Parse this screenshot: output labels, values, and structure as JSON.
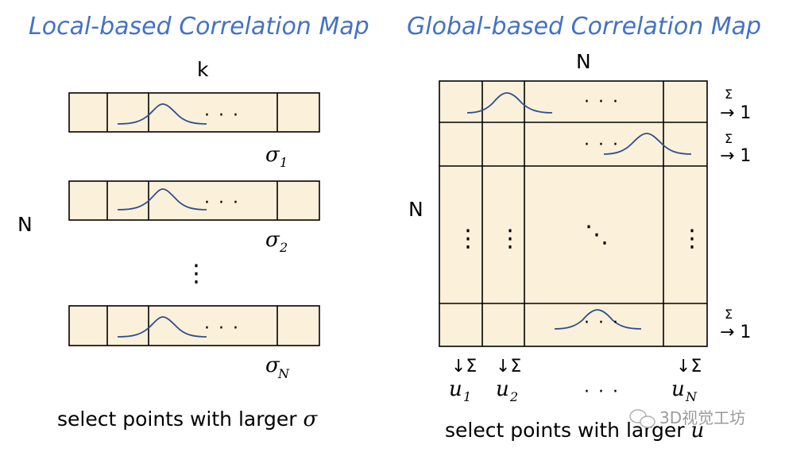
{
  "left_panel": {
    "title": "Local-based Correlation Map",
    "k_label": "k",
    "n_label": "N",
    "row_dots": "· · ·",
    "vertical_dots": "⋮",
    "sigma_symbol": "σ",
    "sigma_subscripts": [
      "1",
      "2",
      "N"
    ],
    "caption": "select points with larger ",
    "caption_symbol": "σ"
  },
  "right_panel": {
    "title": "Global-based Correlation Map",
    "n_top_label": "N",
    "n_left_label": "N",
    "row_sum_prefix": "Σ",
    "row_sum_arrow": "→ 1",
    "col_sum_label": "↓Σ",
    "u_symbol": "u",
    "u_subscripts": [
      "1",
      "2",
      "N"
    ],
    "cell_dots": "· · ·",
    "diag_dots": "⋱",
    "vertical_dots": "⋮",
    "bottom_dots": "· · ·",
    "caption": "select points with larger ",
    "caption_symbol": "u"
  },
  "watermark": "3D视觉工坊",
  "colors": {
    "title": "#4472c4",
    "cell_fill": "#fbf0d9",
    "curve": "#2f4f8f"
  }
}
